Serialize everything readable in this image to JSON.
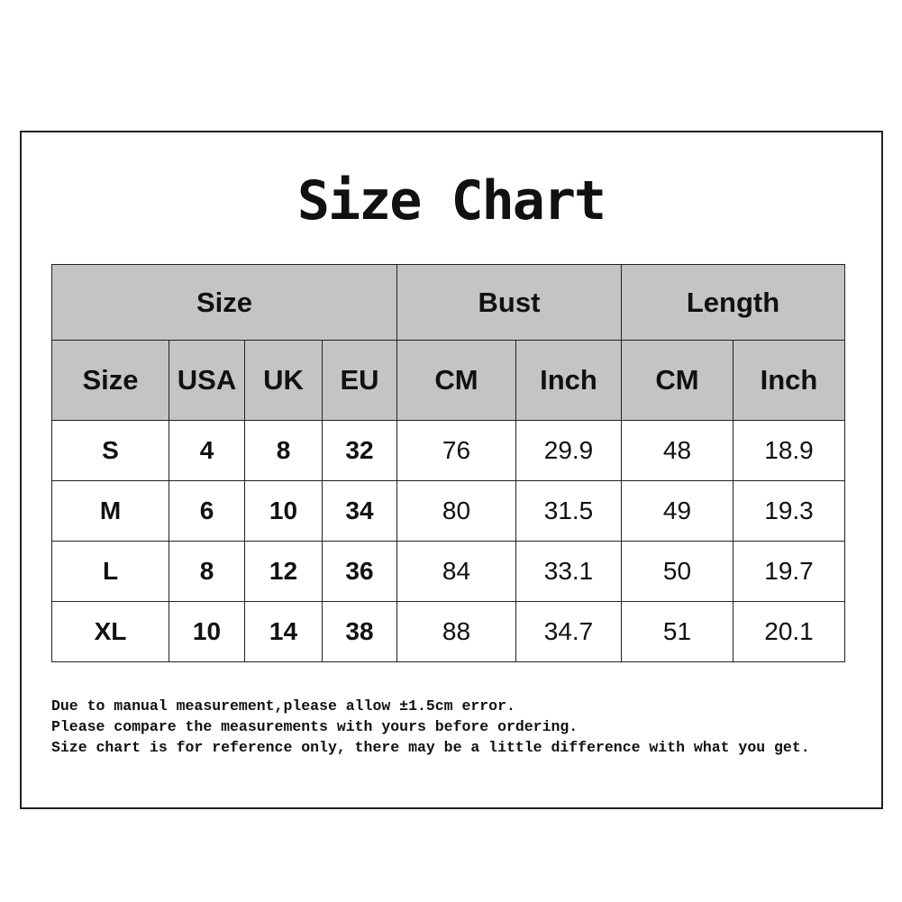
{
  "title": "Size Chart",
  "table": {
    "group_headers": [
      "Size",
      "Bust",
      "Length"
    ],
    "sub_headers": [
      "Size",
      "USA",
      "UK",
      "EU",
      "CM",
      "Inch",
      "CM",
      "Inch"
    ],
    "rows": [
      [
        "S",
        "4",
        "8",
        "32",
        "76",
        "29.9",
        "48",
        "18.9"
      ],
      [
        "M",
        "6",
        "10",
        "34",
        "80",
        "31.5",
        "49",
        "19.3"
      ],
      [
        "L",
        "8",
        "12",
        "36",
        "84",
        "33.1",
        "50",
        "19.7"
      ],
      [
        "XL",
        "10",
        "14",
        "38",
        "88",
        "34.7",
        "51",
        "20.1"
      ]
    ]
  },
  "notes": [
    "Due to manual measurement,please allow ±1.5cm error.",
    "Please compare the measurements with yours before ordering.",
    "Size chart is for reference only, there may be a little difference with what you get."
  ],
  "colors": {
    "header_bg": "#c4c4c4",
    "border": "#222222"
  }
}
